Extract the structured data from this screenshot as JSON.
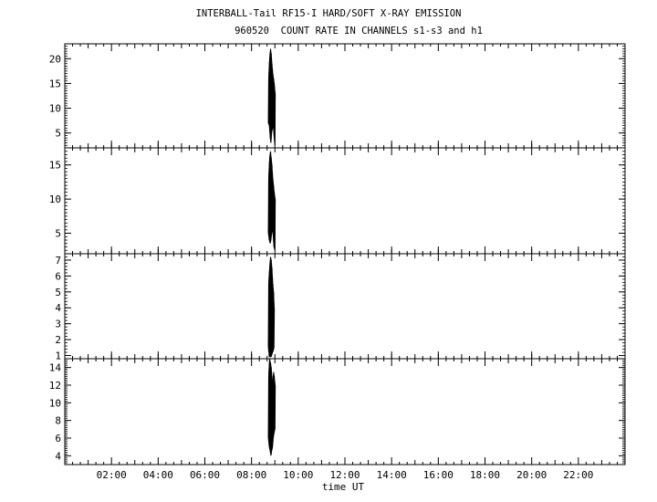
{
  "chart_data": {
    "type": "line",
    "title": "INTERBALL-Tail RF15-I HARD/SOFT X-RAY EMISSION",
    "subtitle": "960520  COUNT RATE IN CHANNELS s1-s3 and h1",
    "xlabel": "time UT",
    "x_tick_labels": [
      "02:00",
      "04:00",
      "06:00",
      "08:00",
      "10:00",
      "12:00",
      "14:00",
      "16:00",
      "18:00",
      "20:00",
      "22:00"
    ],
    "xlim_hours": [
      0,
      24
    ],
    "panels": [
      {
        "ylim": [
          2,
          23
        ],
        "yticks": [
          5,
          10,
          15,
          20
        ],
        "series": {
          "x": [
            8.72,
            8.76,
            8.8,
            8.83,
            8.86,
            8.9,
            8.93,
            8.96,
            9.0
          ],
          "low": [
            7,
            6.5,
            4,
            3,
            5,
            6,
            7,
            4.5,
            2.5
          ],
          "high": [
            16,
            20,
            22,
            21,
            19,
            17,
            16,
            15,
            13
          ]
        }
      },
      {
        "ylim": [
          2,
          17.5
        ],
        "yticks": [
          5,
          10,
          15
        ],
        "series": {
          "x": [
            8.72,
            8.76,
            8.8,
            8.83,
            8.86,
            8.9,
            8.93,
            8.96,
            9.0
          ],
          "low": [
            5,
            4,
            3.5,
            4,
            5,
            5.5,
            4.5,
            3,
            2.5
          ],
          "high": [
            13,
            16,
            17,
            16,
            15,
            13,
            12,
            11,
            10
          ]
        }
      },
      {
        "ylim": [
          0.8,
          7.4
        ],
        "yticks": [
          1,
          2,
          3,
          4,
          5,
          6,
          7
        ],
        "series": {
          "x": [
            8.72,
            8.76,
            8.8,
            8.83,
            8.86,
            8.9,
            8.93,
            8.96
          ],
          "low": [
            1.5,
            0.9,
            0.9,
            0.9,
            1.0,
            1.2,
            1.3,
            1.5
          ],
          "high": [
            5.5,
            6.5,
            7.2,
            7.0,
            6.5,
            5.5,
            5.0,
            4.0
          ]
        }
      },
      {
        "ylim": [
          3,
          15
        ],
        "yticks": [
          4,
          6,
          8,
          10,
          12,
          14
        ],
        "series": {
          "x": [
            8.72,
            8.76,
            8.8,
            8.83,
            8.86,
            8.9,
            8.93,
            8.96,
            9.0
          ],
          "low": [
            6,
            5,
            4.5,
            4,
            4.5,
            5,
            6,
            6.5,
            7
          ],
          "high": [
            13,
            15,
            14.5,
            14,
            13,
            12,
            13.5,
            13,
            12
          ]
        }
      }
    ]
  }
}
